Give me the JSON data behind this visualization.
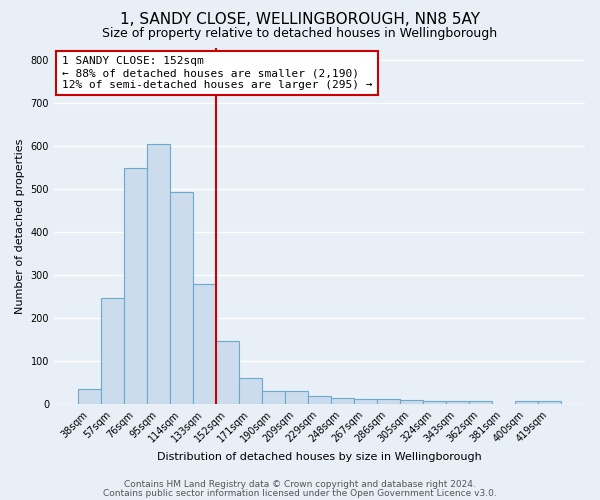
{
  "title1": "1, SANDY CLOSE, WELLINGBOROUGH, NN8 5AY",
  "title2": "Size of property relative to detached houses in Wellingborough",
  "xlabel": "Distribution of detached houses by size in Wellingborough",
  "ylabel": "Number of detached properties",
  "categories": [
    "38sqm",
    "57sqm",
    "76sqm",
    "95sqm",
    "114sqm",
    "133sqm",
    "152sqm",
    "171sqm",
    "190sqm",
    "209sqm",
    "229sqm",
    "248sqm",
    "267sqm",
    "286sqm",
    "305sqm",
    "324sqm",
    "343sqm",
    "362sqm",
    "381sqm",
    "400sqm",
    "419sqm"
  ],
  "values": [
    35,
    248,
    550,
    605,
    495,
    280,
    148,
    62,
    32,
    30,
    20,
    15,
    13,
    12,
    10,
    8,
    8,
    8,
    2,
    8,
    8
  ],
  "bar_color": "#ccdcec",
  "bar_edge_color": "#6aaace",
  "vline_x": 5.5,
  "vline_color": "#cc0000",
  "annotation_line1": "1 SANDY CLOSE: 152sqm",
  "annotation_line2": "← 88% of detached houses are smaller (2,190)",
  "annotation_line3": "12% of semi-detached houses are larger (295) →",
  "annotation_box_color": "#ffffff",
  "annotation_box_edge_color": "#cc0000",
  "ylim": [
    0,
    830
  ],
  "yticks": [
    0,
    100,
    200,
    300,
    400,
    500,
    600,
    700,
    800
  ],
  "footer1": "Contains HM Land Registry data © Crown copyright and database right 2024.",
  "footer2": "Contains public sector information licensed under the Open Government Licence v3.0.",
  "background_color": "#e8eff6",
  "grid_color": "#ffffff",
  "title1_fontsize": 11,
  "title2_fontsize": 9,
  "tick_fontsize": 7,
  "ylabel_fontsize": 8,
  "xlabel_fontsize": 8,
  "footer_fontsize": 6.5,
  "annotation_fontsize": 8
}
